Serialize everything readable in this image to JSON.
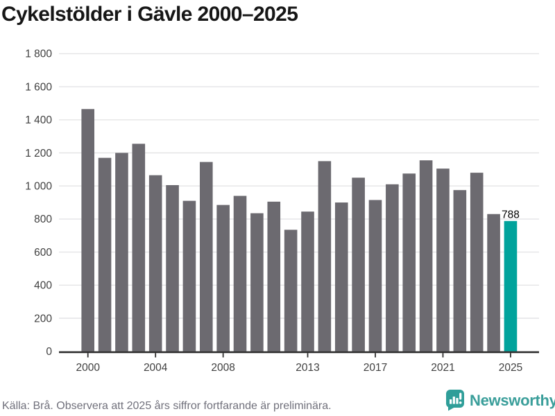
{
  "title": "Cykelstölder i Gävle 2000–2025",
  "chart_data": {
    "type": "bar",
    "title": "Cykelstölder i Gävle 2000–2025",
    "categories": [
      2000,
      2001,
      2002,
      2003,
      2004,
      2005,
      2006,
      2007,
      2008,
      2009,
      2010,
      2011,
      2012,
      2013,
      2014,
      2015,
      2016,
      2017,
      2018,
      2019,
      2020,
      2021,
      2022,
      2023,
      2024,
      2025
    ],
    "values": [
      1465,
      1170,
      1200,
      1255,
      1065,
      1005,
      910,
      1145,
      885,
      940,
      835,
      905,
      735,
      845,
      1150,
      900,
      1050,
      915,
      1010,
      1075,
      1155,
      1105,
      975,
      1080,
      830,
      788
    ],
    "xlabel": "",
    "ylabel": "",
    "ylim": [
      0,
      1800
    ],
    "grid": "horizontal",
    "legend": "none",
    "ytick_values": [
      0,
      200,
      400,
      600,
      800,
      1000,
      1200,
      1400,
      1600,
      1800
    ],
    "ytick_labels": [
      "0",
      "200",
      "400",
      "600",
      "800",
      "1 000",
      "1 200",
      "1 400",
      "1 600",
      "1 800"
    ],
    "xtick_years": [
      2000,
      2004,
      2008,
      2013,
      2017,
      2021,
      2025
    ],
    "xtick_labels": [
      "2000",
      "2004",
      "2008",
      "2013",
      "2017",
      "2021",
      "2025"
    ],
    "highlight_year": 2025,
    "annotation": {
      "year": 2025,
      "text": "788"
    },
    "colors": {
      "bar": "#6C6A70",
      "highlight": "#00A39C",
      "grid": "#E4E4E6",
      "axis": "#2D2D2D",
      "tick_label": "#3F3F3F",
      "annotation": "#000000"
    }
  },
  "footer": {
    "source_note": "Källa: Brå. Observera att 2025 års siffror fortfarande är preliminära.",
    "brand": "Newsworthy",
    "brand_color": "#3A9E9A",
    "icon": "newsworthy-speech-bubble-bar-chart"
  }
}
